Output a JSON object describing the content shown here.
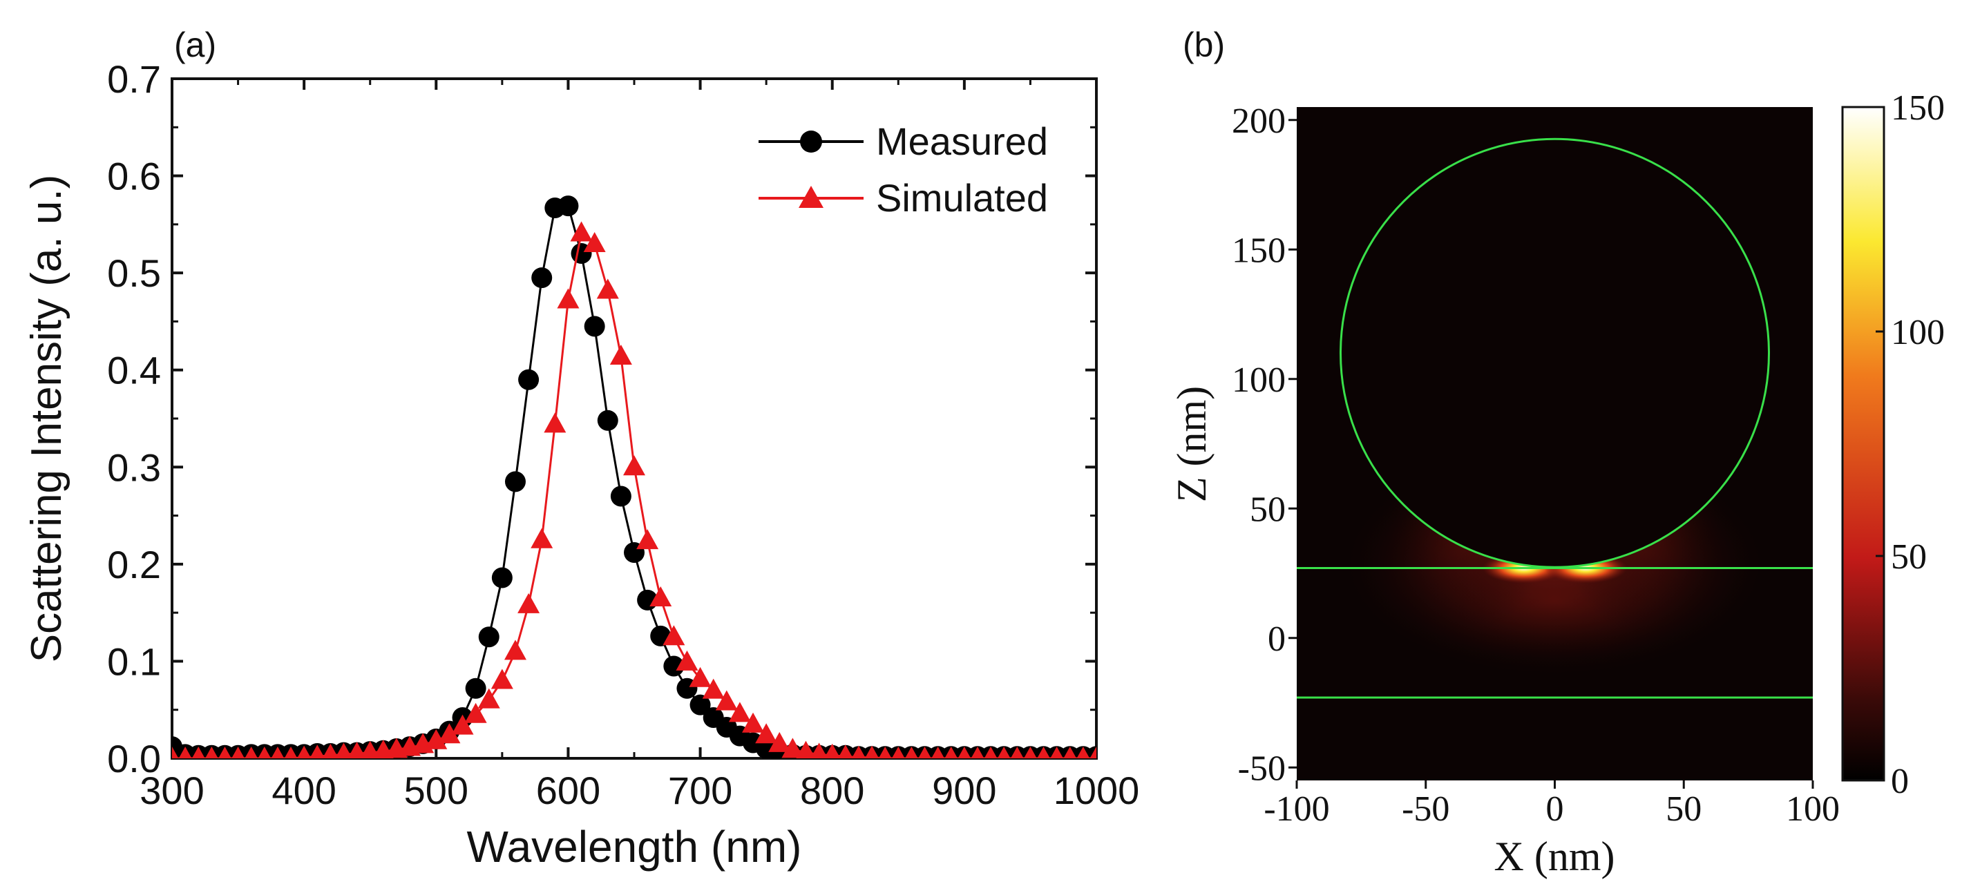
{
  "chart_data": [
    {
      "type": "line",
      "panel_label": "(a)",
      "xlabel": "Wavelength (nm)",
      "ylabel": "Scattering Intensity (a. u.)",
      "xlim": [
        300,
        1000
      ],
      "ylim": [
        0,
        0.7
      ],
      "x_ticks": [
        "300",
        "400",
        "500",
        "600",
        "700",
        "800",
        "900",
        "1000"
      ],
      "y_ticks": [
        "0.0",
        "0.1",
        "0.2",
        "0.3",
        "0.4",
        "0.5",
        "0.6",
        "0.7"
      ],
      "legend_position": "top-right",
      "series": [
        {
          "name": "Measured",
          "marker": "circle",
          "color": "#000000",
          "x": [
            300,
            310,
            320,
            330,
            340,
            350,
            360,
            370,
            380,
            390,
            400,
            410,
            420,
            430,
            440,
            450,
            460,
            470,
            480,
            490,
            500,
            510,
            520,
            530,
            540,
            550,
            560,
            570,
            580,
            590,
            600,
            610,
            620,
            630,
            640,
            650,
            660,
            670,
            680,
            690,
            700,
            710,
            720,
            730,
            740,
            750,
            760,
            770,
            780,
            790,
            800,
            810,
            820,
            830,
            840,
            850,
            860,
            870,
            880,
            890,
            900,
            910,
            920,
            930,
            940,
            950,
            960,
            970,
            980,
            990,
            1000
          ],
          "y": [
            0.012,
            0.004,
            0.003,
            0.003,
            0.003,
            0.003,
            0.004,
            0.004,
            0.004,
            0.004,
            0.004,
            0.005,
            0.005,
            0.006,
            0.006,
            0.007,
            0.008,
            0.01,
            0.012,
            0.015,
            0.02,
            0.028,
            0.042,
            0.072,
            0.125,
            0.186,
            0.285,
            0.39,
            0.495,
            0.567,
            0.569,
            0.52,
            0.445,
            0.348,
            0.27,
            0.212,
            0.163,
            0.126,
            0.095,
            0.072,
            0.055,
            0.042,
            0.032,
            0.023,
            0.016,
            0.01,
            0.006,
            0.004,
            0.003,
            0.003,
            0.003,
            0.003,
            0.002,
            0.002,
            0.002,
            0.002,
            0.002,
            0.002,
            0.002,
            0.002,
            0.002,
            0.002,
            0.002,
            0.002,
            0.002,
            0.002,
            0.002,
            0.002,
            0.002,
            0.002,
            0.002
          ]
        },
        {
          "name": "Simulated",
          "marker": "triangle",
          "color": "#e8191d",
          "x": [
            300,
            310,
            320,
            330,
            340,
            350,
            360,
            370,
            380,
            390,
            400,
            410,
            420,
            430,
            440,
            450,
            460,
            470,
            480,
            490,
            500,
            510,
            520,
            530,
            540,
            550,
            560,
            570,
            580,
            590,
            600,
            610,
            620,
            630,
            640,
            650,
            660,
            670,
            680,
            690,
            700,
            710,
            720,
            730,
            740,
            750,
            760,
            770,
            780,
            790,
            800,
            810,
            820,
            830,
            840,
            850,
            860,
            870,
            880,
            890,
            900,
            910,
            920,
            930,
            940,
            950,
            960,
            970,
            980,
            990,
            1000
          ],
          "y": [
            0.0,
            0.0,
            0.0,
            0.0,
            0.0,
            0.0,
            0.0,
            0.0,
            0.0,
            0.0,
            0.001,
            0.002,
            0.003,
            0.004,
            0.005,
            0.006,
            0.007,
            0.009,
            0.011,
            0.014,
            0.018,
            0.024,
            0.033,
            0.045,
            0.06,
            0.08,
            0.11,
            0.158,
            0.225,
            0.344,
            0.472,
            0.541,
            0.53,
            0.482,
            0.414,
            0.3,
            0.224,
            0.165,
            0.125,
            0.099,
            0.082,
            0.07,
            0.058,
            0.046,
            0.035,
            0.024,
            0.015,
            0.009,
            0.006,
            0.004,
            0.003,
            0.002,
            0.001,
            0.001,
            0.0,
            0.0,
            0.0,
            0.0,
            0.0,
            0.0,
            0.0,
            0.0,
            0.0,
            0.0,
            0.0,
            0.0,
            0.0,
            0.0,
            0.0,
            0.0,
            0.0
          ]
        }
      ]
    },
    {
      "type": "heatmap",
      "panel_label": "(b)",
      "xlabel": "X (nm)",
      "ylabel": "Z (nm)",
      "xlim": [
        -100,
        100
      ],
      "ylim": [
        -55,
        205
      ],
      "x_ticks": [
        "-100",
        "-50",
        "0",
        "50",
        "100"
      ],
      "y_ticks": [
        "-50",
        "0",
        "50",
        "100",
        "150",
        "200"
      ],
      "colorbar": {
        "range": [
          0,
          150
        ],
        "ticks": [
          "0",
          "50",
          "100",
          "150"
        ],
        "colormap": [
          "#000000",
          "#3a0a08",
          "#c21a18",
          "#f07a1c",
          "#fbe830",
          "#ffffff"
        ]
      },
      "overlay_color": "#39e04a",
      "overlays": {
        "sphere": {
          "center_x": 0,
          "center_z": 110,
          "radius": 83
        },
        "layer_top_z": 27,
        "layer_bottom_z": -23
      },
      "hotspots": [
        {
          "x": -12,
          "z": 27,
          "intensity": 150
        },
        {
          "x": 12,
          "z": 27,
          "intensity": 150
        }
      ]
    }
  ]
}
